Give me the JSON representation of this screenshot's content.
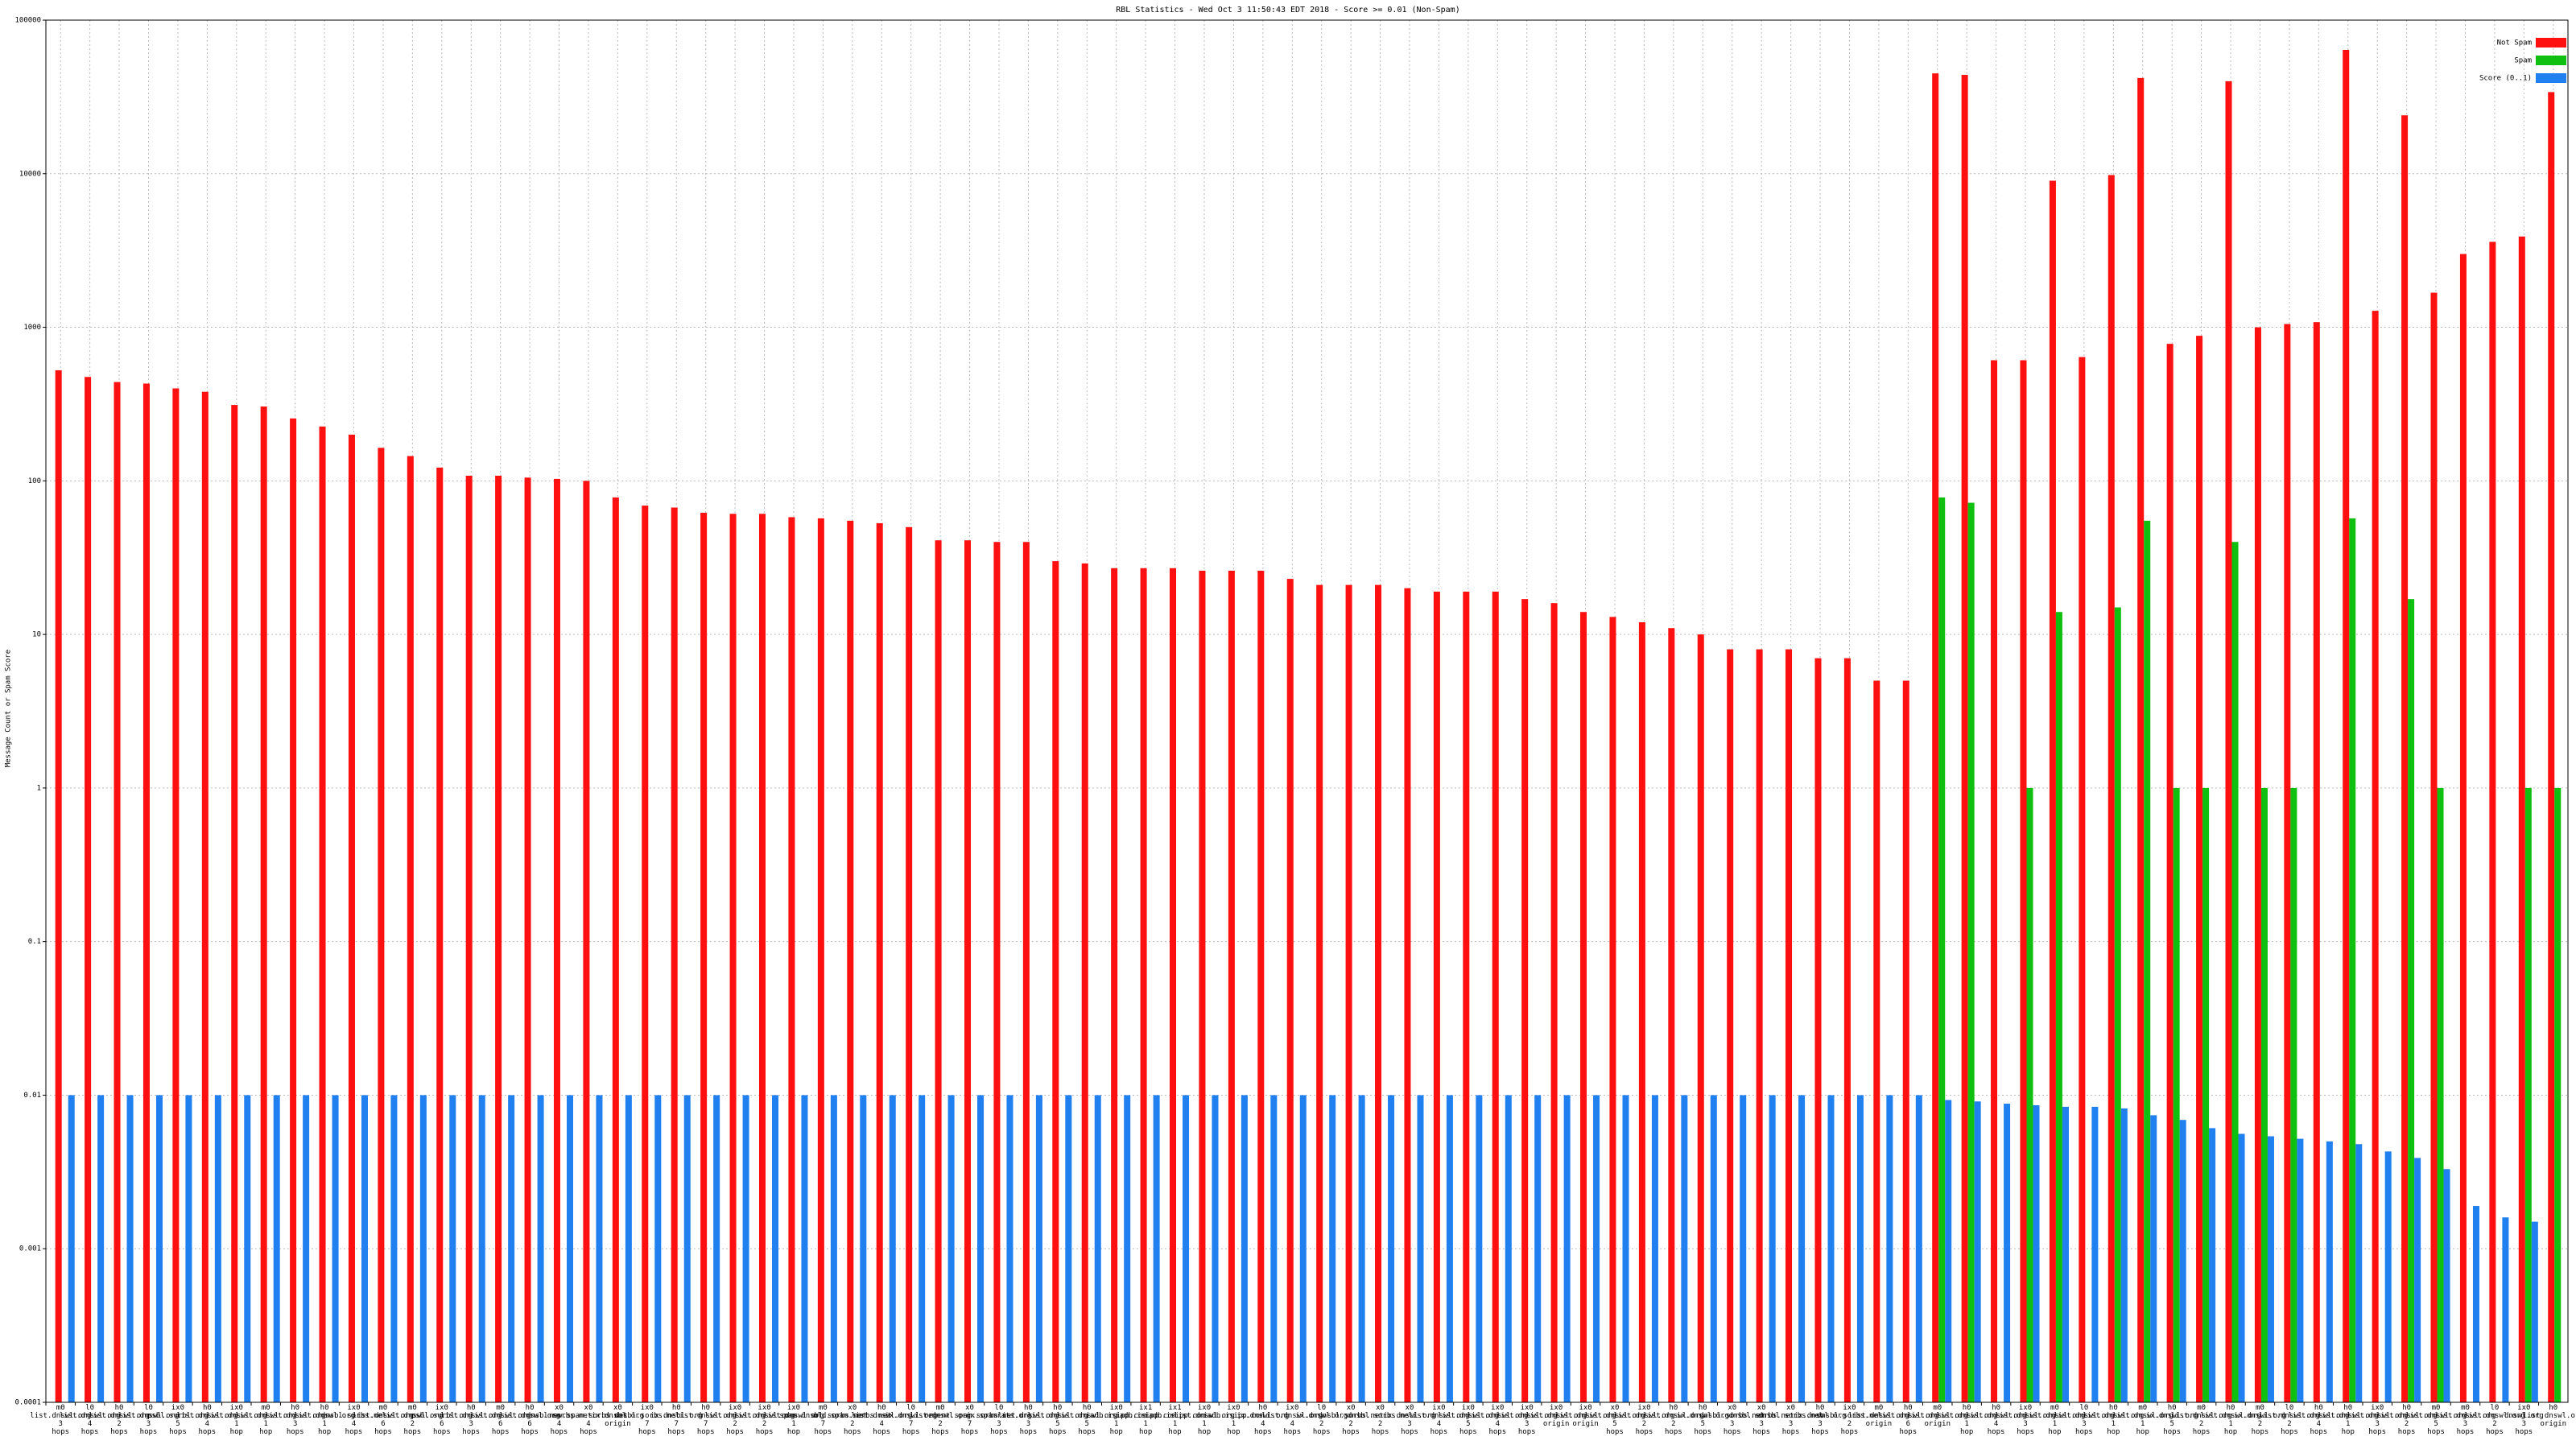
{
  "chart_data": {
    "type": "bar",
    "title": "RBL Statistics - Wed Oct  3 11:50:43 EDT 2018 - Score >= 0.01 (Non-Spam)",
    "y_label": "Message Count or Spam Score",
    "log_y": true,
    "grid": true,
    "legend": "top-right",
    "ylim": [
      0.0001,
      100000
    ],
    "yticks": [
      0.0001,
      0.001,
      0.01,
      0.1,
      1,
      10,
      100,
      1000,
      10000,
      100000
    ],
    "categories": [
      "m0 list.dnswl.org 3 hops",
      "l0 list.dnswl.org 4 hops",
      "h0 list.dnswl.org 2 hops",
      "l0 list.dnswl.org 3 hops",
      "ix0 psbl.surbl.org 5 hops",
      "h0 list.dnswl.org 4 hops",
      "ix0 list.dnswl.org 1 hop",
      "m0 list.dnswl.org 1 hop",
      "h0 list.dnswl.org 3 hops",
      "h0 list.dnswl.org 1 hop",
      "ix0 dnsbl.sorbs.net 4 hops",
      "m0 list.dnswl.org 6 hops",
      "m0 list.dnswl.org 2 hops",
      "ix0 psbl.surbl.org 6 hops",
      "h0 list.dnswl.org 3 hops",
      "m0 list.dnswl.org 6 hops",
      "h0 list.dnswl.org 6 hops",
      "x0 dnsbl.sorbs.net 4 hops",
      "x0 new.spam.sorbs.net 4 hops",
      "x0 ix.dnsbl.org origin",
      "ix0 dnsbl.sorbs.net 7 hops",
      "h0 ix.dnsbl.org 7 hops",
      "h0 list.dnswl.org 7 hops",
      "ix0 list.dnswl.org 2 hops",
      "ix0 list.dnswl.org 2 hops",
      "ix0 list.dnswl.org 1 hop",
      "m0 spam.dnsbl.sorbs.net 7 hops",
      "x0 old.spam.sorbs.net 2 hops",
      "h0 list.dnswl.org 4 hops",
      "l0 ix.dnswl.org 7 hops",
      "m0 list.dnswl.org 2 hops",
      "x0 recent.spam.sorbs.net 7 hops",
      "l0 ix.spamrats.org 3 hops",
      "h0 list.dnswl.org 3 hops",
      "h0 list.dnswl.org 5 hops",
      "h0 list.dnswl.org 5 hops",
      "ix0 iadb.isipp.com 1 hop",
      "ix1 iadb.isipp.com 1 hop",
      "ix1 iadb.isipp.com 1 hop",
      "ix0 list.dnswl.org 1 hop",
      "ix0 iadb.isipp.com 1 hop",
      "h0 ix.dnswl.org 4 hops",
      "ix0 list.dnswl.org 4 hops",
      "l0 ix.dnswl.org 2 hops",
      "x0 dnsbl.sorbs.net 2 hops",
      "x0 dnsbl.sorbs.net 2 hops",
      "x0 ix.dnswl.org 3 hops",
      "ix0 list.dnswl.org 4 hops",
      "ix0 list.dnswl.org 5 hops",
      "ix0 list.dnswl.org 4 hops",
      "ix0 list.dnswl.org 3 hops",
      "ix0 list.dnswl.org origin",
      "ix0 list.dnswl.org origin",
      "x0 list.dnswl.org 5 hops",
      "ix0 list.dnswl.org 2 hops",
      "h0 list.dnswl.org 2 hops",
      "h0 ix.dnswl.org 5 hops",
      "x0 dnsbl.sorbs.net 3 hops",
      "x0 dnsbl.sorbs.net 3 hops",
      "x0 dnsbl.sorbs.net 3 hops",
      "h0 ix.dnswl.org 3 hops",
      "ix0 dnsbl.sorbs.net 2 hops",
      "m0 list.dnswl.org origin",
      "h0 list.dnswl.org 6 hops",
      "m0 list.dnswl.org origin",
      "h0 list.dnswl.org 1 hop",
      "h0 list.dnswl.org 4 hops",
      "ix0 list.dnswl.org 3 hops",
      "m0 list.dnswl.org 1 hop",
      "l0 list.dnswl.org 3 hops",
      "h0 list.dnswl.org 1 hop",
      "m0 list.dnswl.org 1 hop",
      "h0 ix.dnswl.org 5 hops",
      "m0 list.dnswl.org 2 hops",
      "h0 list.dnswl.org 1 hop",
      "m0 ix.dnswl.org 2 hops",
      "l0 list.dnswl.org 2 hops",
      "h0 list.dnswl.org 4 hops",
      "h0 list.dnswl.org 1 hop",
      "ix0 list.dnswl.org 3 hops",
      "h0 list.dnswl.org 2 hops",
      "m0 list.dnswl.org 5 hops",
      "m0 list.dnswl.org 3 hops",
      "l0 list.dnswl.org 2 hops",
      "ix0 dnswl.org 3 hops",
      "h0 list.dnswl.org origin"
    ],
    "series": [
      {
        "name": "Not Spam",
        "color": "#ff1010",
        "values": [
          525,
          475,
          440,
          430,
          400,
          380,
          312,
          305,
          255,
          226,
          200,
          164,
          145,
          122,
          108,
          108,
          105,
          103,
          100,
          78,
          69,
          67,
          62,
          61,
          61,
          58,
          57,
          55,
          53,
          50,
          41,
          41,
          40,
          40,
          30,
          29,
          27,
          27,
          27,
          26,
          26,
          26,
          23,
          21,
          21,
          21,
          20,
          19,
          19,
          19,
          17,
          16,
          14,
          13,
          12,
          11,
          10,
          8,
          8,
          8,
          7,
          7,
          5,
          5,
          45000,
          44000,
          610,
          610,
          9000,
          640,
          9800,
          42000,
          780,
          880,
          40000,
          1000,
          1050,
          1080,
          64000,
          1280,
          24000,
          1680,
          3000,
          3600,
          3900,
          34000
        ]
      },
      {
        "name": "Spam",
        "color": "#10c010",
        "values": [
          null,
          null,
          null,
          null,
          null,
          null,
          null,
          null,
          null,
          null,
          null,
          null,
          null,
          null,
          null,
          null,
          null,
          null,
          null,
          null,
          null,
          null,
          null,
          null,
          null,
          null,
          null,
          null,
          null,
          null,
          null,
          null,
          null,
          null,
          null,
          null,
          null,
          null,
          null,
          null,
          null,
          null,
          null,
          null,
          null,
          null,
          null,
          null,
          null,
          null,
          null,
          null,
          null,
          null,
          null,
          null,
          null,
          null,
          null,
          null,
          null,
          null,
          null,
          null,
          78,
          72,
          null,
          1,
          14,
          null,
          15,
          55,
          1,
          1,
          40,
          1,
          1,
          null,
          57,
          null,
          17,
          1,
          null,
          null,
          1,
          1
        ]
      },
      {
        "name": "Score (0..1)",
        "color": "#2080f0",
        "values": [
          0.01,
          0.01,
          0.01,
          0.01,
          0.01,
          0.01,
          0.01,
          0.01,
          0.01,
          0.01,
          0.01,
          0.01,
          0.01,
          0.01,
          0.01,
          0.01,
          0.01,
          0.01,
          0.01,
          0.01,
          0.01,
          0.01,
          0.01,
          0.01,
          0.01,
          0.01,
          0.01,
          0.01,
          0.01,
          0.01,
          0.01,
          0.01,
          0.01,
          0.01,
          0.01,
          0.01,
          0.01,
          0.01,
          0.01,
          0.01,
          0.01,
          0.01,
          0.01,
          0.01,
          0.01,
          0.01,
          0.01,
          0.01,
          0.01,
          0.01,
          0.01,
          0.01,
          0.01,
          0.01,
          0.01,
          0.01,
          0.01,
          0.01,
          0.01,
          0.01,
          0.01,
          0.01,
          0.01,
          0.01,
          0.0093,
          0.0091,
          0.0088,
          0.0086,
          0.0084,
          0.0084,
          0.0082,
          0.0074,
          0.0069,
          0.0061,
          0.0056,
          0.0054,
          0.0052,
          0.005,
          0.0048,
          0.0043,
          0.0039,
          0.0033,
          0.0019,
          0.0016,
          0.0015,
          null
        ]
      }
    ]
  }
}
